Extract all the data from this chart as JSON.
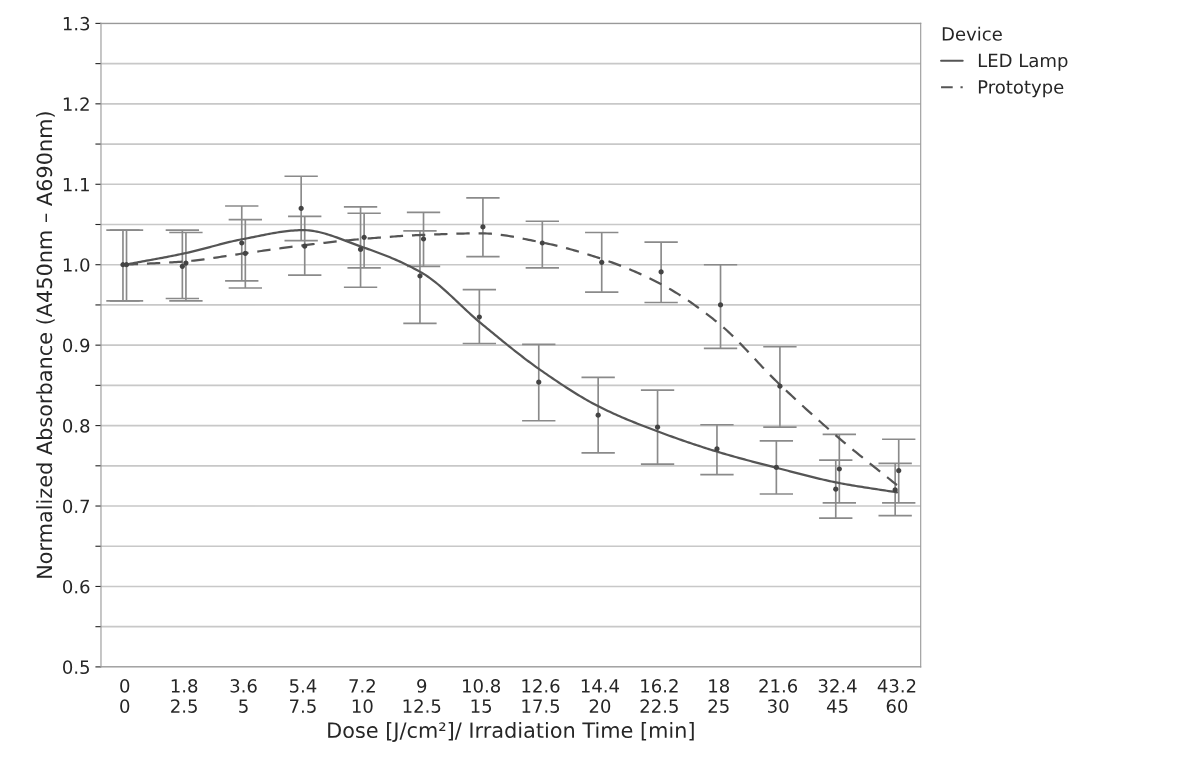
{
  "chart_data": {
    "type": "line",
    "xlabel": "Dose [J/cm²]/ Irradiation Time [min]",
    "ylabel": "Normalized Absorbance (A450nm – A690nm)",
    "legend_title": "Device",
    "categories": [
      "0\n0",
      "1.8\n2.5",
      "3.6\n5",
      "5.4\n7.5",
      "7.2\n10",
      "9\n12.5",
      "10.8\n15",
      "12.6\n17.5",
      "14.4\n20",
      "16.2\n22.5",
      "18\n25",
      "21.6\n30",
      "32.4\n45",
      "43.2\n60"
    ],
    "series": [
      {
        "type": "scatter",
        "color": "#444444",
        "marker": "circle",
        "values": [
          1.0,
          0.998,
          1.027,
          1.07,
          1.019,
          0.986,
          0.935,
          0.854,
          0.813,
          0.798,
          0.771,
          0.748,
          0.721,
          0.72
        ],
        "errors": [
          [
            0.955,
            1.043
          ],
          [
            0.958,
            1.043
          ],
          [
            0.98,
            1.073
          ],
          [
            1.03,
            1.11
          ],
          [
            0.972,
            1.072
          ],
          [
            0.927,
            1.042
          ],
          [
            0.902,
            0.969
          ],
          [
            0.806,
            0.901
          ],
          [
            0.766,
            0.86
          ],
          [
            0.752,
            0.844
          ],
          [
            0.739,
            0.801
          ],
          [
            0.715,
            0.781
          ],
          [
            0.685,
            0.757
          ],
          [
            0.688,
            0.753
          ]
        ]
      },
      {
        "type": "scatter",
        "color": "#444444",
        "marker": "circle",
        "values": [
          1.0,
          1.002,
          1.014,
          1.023,
          1.034,
          1.032,
          1.047,
          1.027,
          1.003,
          0.991,
          0.95,
          0.849,
          0.746,
          0.744
        ],
        "errors": [
          [
            0.955,
            1.043
          ],
          [
            0.955,
            1.04
          ],
          [
            0.971,
            1.056
          ],
          [
            0.987,
            1.06
          ],
          [
            0.996,
            1.064
          ],
          [
            0.998,
            1.065
          ],
          [
            1.01,
            1.083
          ],
          [
            0.996,
            1.054
          ],
          [
            0.966,
            1.04
          ],
          [
            0.953,
            1.028
          ],
          [
            0.896,
            1.0
          ],
          [
            0.798,
            0.898
          ],
          [
            0.704,
            0.789
          ],
          [
            0.704,
            0.783
          ]
        ]
      },
      {
        "name": "LED Lamp",
        "color": "#555555",
        "line_style": "solid",
        "values": [
          1.0,
          1.014,
          1.032,
          1.043,
          1.022,
          0.99,
          0.927,
          0.869,
          0.823,
          0.792,
          0.767,
          0.747,
          0.729,
          0.717
        ]
      },
      {
        "name": "Prototype",
        "color": "#555555",
        "line_style": "dashed",
        "values": [
          1.0,
          1.004,
          1.014,
          1.024,
          1.032,
          1.037,
          1.039,
          1.028,
          1.008,
          0.977,
          0.927,
          0.853,
          0.786,
          0.726
        ]
      }
    ],
    "ylim": [
      0.5,
      1.3
    ],
    "yticks": [
      0.5,
      {
        "value": 0.55,
        "label": null
      },
      0.6,
      {
        "value": 0.65,
        "label": null
      },
      0.7,
      {
        "value": 0.75,
        "label": null
      },
      0.8,
      {
        "value": 0.85,
        "label": null
      },
      0.9,
      {
        "value": 0.95,
        "label": null
      },
      {
        "value": 1.0,
        "label": "1.0"
      },
      {
        "value": 1.05,
        "label": null
      },
      1.1,
      {
        "value": 1.15,
        "label": null
      },
      1.2,
      {
        "value": 1.25,
        "label": null
      },
      1.3
    ],
    "grid": "y",
    "legend": "top right"
  }
}
